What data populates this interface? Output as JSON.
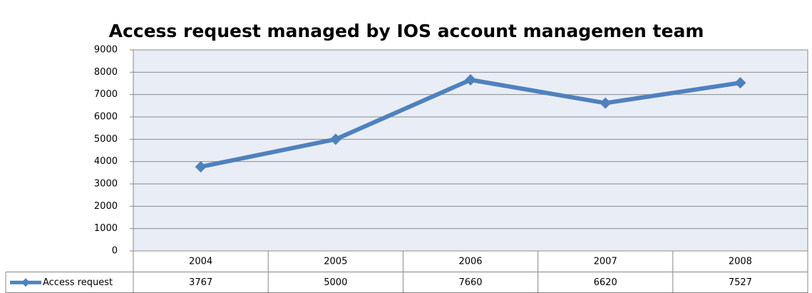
{
  "chart_data": {
    "type": "line",
    "title": "Access request managed by IOS account managemen team",
    "categories": [
      "2004",
      "2005",
      "2006",
      "2007",
      "2008"
    ],
    "series": [
      {
        "name": "Access request",
        "color": "#4f81bd",
        "values": [
          3767,
          5000,
          7660,
          6620,
          7527
        ]
      }
    ],
    "ylim": [
      0,
      9000
    ],
    "yticks": [
      0,
      1000,
      2000,
      3000,
      4000,
      5000,
      6000,
      7000,
      8000,
      9000
    ],
    "grid": true,
    "data_table": true
  }
}
